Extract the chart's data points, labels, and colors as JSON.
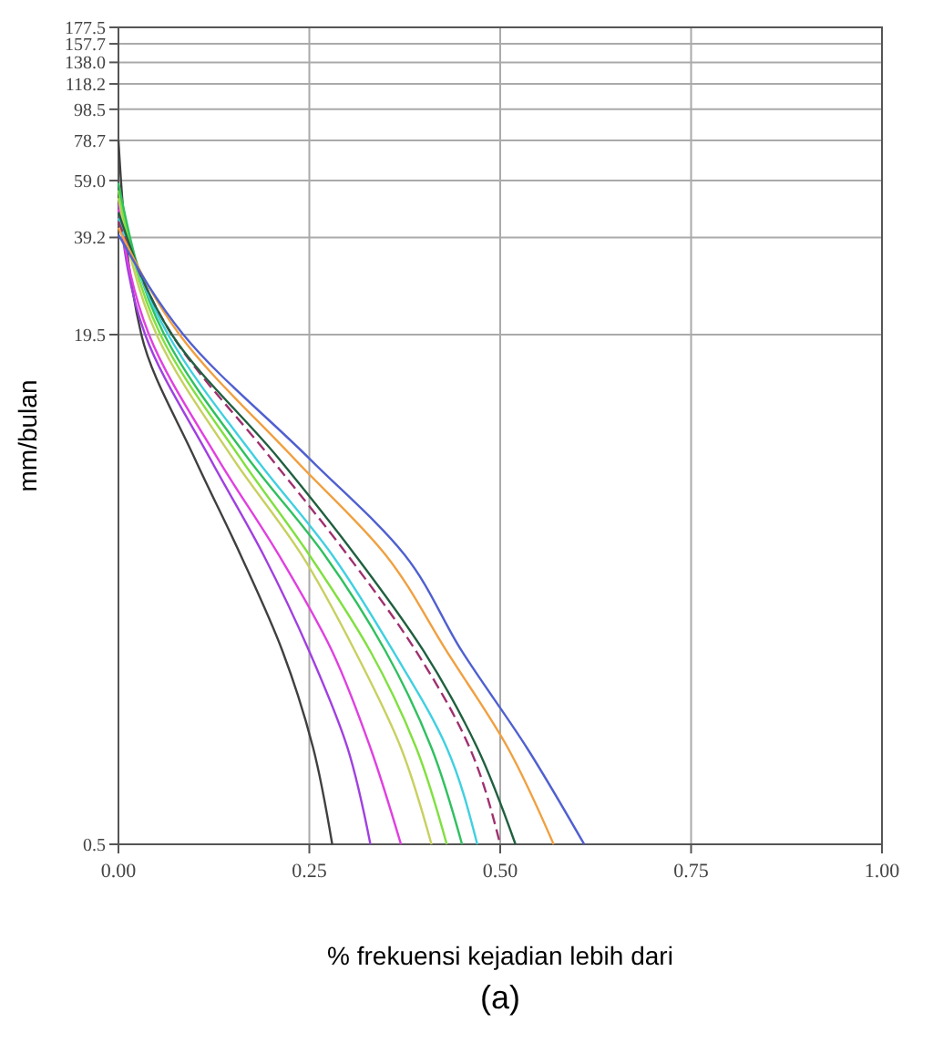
{
  "chart_data": {
    "type": "line",
    "xlabel": "% frekuensi kejadian lebih dari",
    "ylabel": "mm/bulan",
    "annotations": [
      "(a)"
    ],
    "log": true,
    "grid": true,
    "xlim": [
      0,
      1
    ],
    "xticks": [
      {
        "value": 0,
        "label": "0.00"
      },
      {
        "value": 0.25,
        "label": "0.25"
      },
      {
        "value": 0.5,
        "label": "0.50"
      },
      {
        "value": 0.75,
        "label": "0.75"
      },
      {
        "value": 1,
        "label": "1.00"
      }
    ],
    "ylim": [
      0.5,
      177.5
    ],
    "yticks": [
      0.5,
      19.5,
      39.2,
      {
        "value": 59,
        "label": "59.0"
      },
      78.7,
      98.5,
      118.2,
      {
        "value": 138,
        "label": "138.0"
      },
      157.7,
      177.5
    ],
    "series": [
      {
        "color": "#404040",
        "x": [
          0,
          0.03,
          0.1,
          0.16,
          0.215,
          0.255,
          0.28
        ],
        "values": [
          78.7,
          19.5,
          8,
          4,
          2,
          1,
          0.5
        ]
      },
      {
        "color": "#a040e0",
        "x": [
          0,
          0.035,
          0.12,
          0.19,
          0.25,
          0.3,
          0.33
        ],
        "values": [
          50,
          19.5,
          8,
          4,
          2,
          1,
          0.5
        ]
      },
      {
        "color": "#e040e0",
        "x": [
          0,
          0.04,
          0.13,
          0.21,
          0.28,
          0.33,
          0.37
        ],
        "values": [
          48,
          19.5,
          8,
          4,
          2,
          1,
          0.5
        ]
      },
      {
        "color": "#c8d060",
        "x": [
          0,
          0.05,
          0.15,
          0.24,
          0.31,
          0.37,
          0.41
        ],
        "values": [
          52,
          19.5,
          8,
          4,
          2,
          1,
          0.5
        ]
      },
      {
        "color": "#80e040",
        "x": [
          0,
          0.055,
          0.16,
          0.25,
          0.33,
          0.39,
          0.43
        ],
        "values": [
          55,
          19.5,
          8,
          4,
          2,
          1,
          0.5
        ]
      },
      {
        "color": "#30c060",
        "x": [
          0,
          0.06,
          0.17,
          0.27,
          0.35,
          0.41,
          0.45
        ],
        "values": [
          58,
          19.5,
          8,
          4,
          2,
          1,
          0.5
        ]
      },
      {
        "color": "#40d0e0",
        "x": [
          0,
          0.065,
          0.18,
          0.28,
          0.36,
          0.43,
          0.47
        ],
        "values": [
          45,
          19.5,
          8,
          4,
          2,
          1,
          0.5
        ]
      },
      {
        "color": "#a03070",
        "line_style": "dashed",
        "x": [
          0,
          0.07,
          0.2,
          0.3,
          0.39,
          0.46,
          0.5
        ],
        "values": [
          44,
          19.5,
          8,
          4,
          2,
          1,
          0.5
        ]
      },
      {
        "color": "#206040",
        "x": [
          0,
          0.07,
          0.21,
          0.31,
          0.4,
          0.47,
          0.52
        ],
        "values": [
          47,
          19.5,
          8,
          4,
          2,
          1,
          0.5
        ]
      },
      {
        "color": "#f0a040",
        "x": [
          0,
          0.08,
          0.23,
          0.35,
          0.43,
          0.51,
          0.57
        ],
        "values": [
          42,
          19.5,
          8,
          4,
          2,
          1,
          0.5
        ]
      },
      {
        "color": "#5060d0",
        "x": [
          0,
          0.085,
          0.25,
          0.375,
          0.45,
          0.535,
          0.61
        ],
        "values": [
          40,
          19.5,
          8,
          4,
          2,
          1,
          0.5
        ]
      }
    ]
  }
}
